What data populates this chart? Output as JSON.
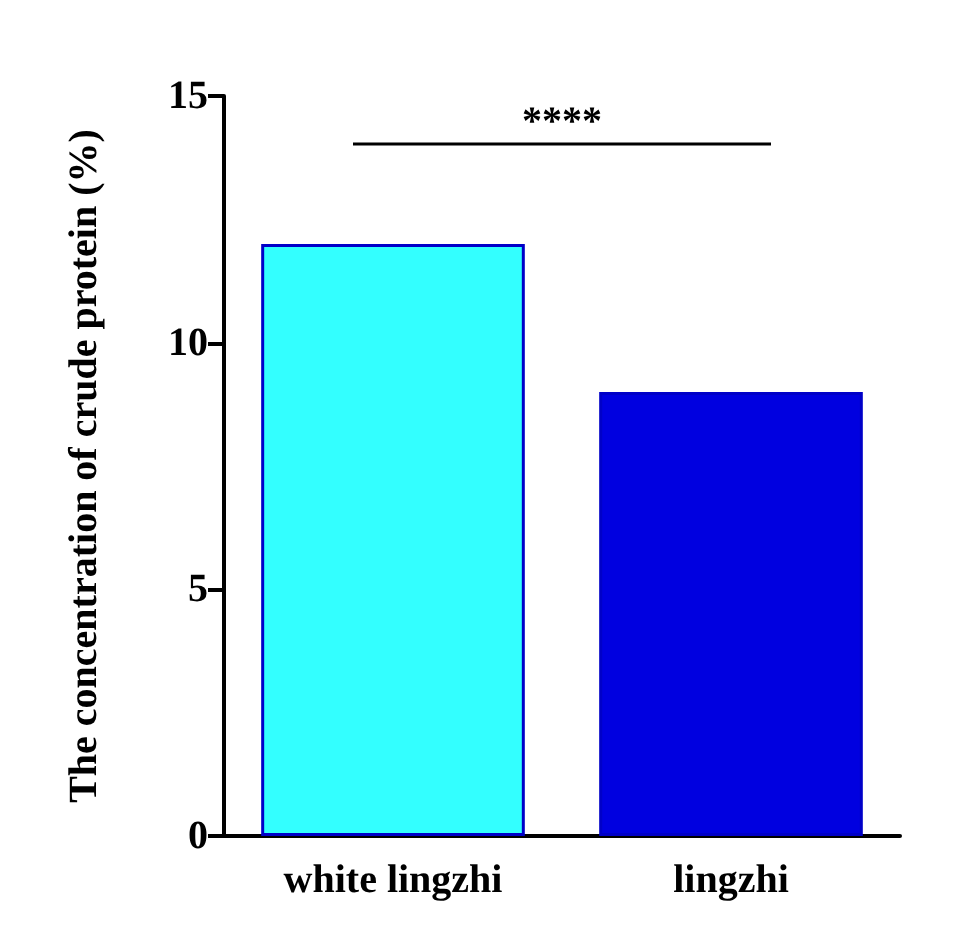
{
  "chart_data": {
    "type": "bar",
    "ylabel": "The concentration of crude protein (%)",
    "categories": [
      "white lingzhi",
      "lingzhi"
    ],
    "values": [
      12.0,
      9.0
    ],
    "colors": [
      "#33ffff",
      "#0000e0"
    ],
    "ylim": [
      0,
      15
    ],
    "yticks": [
      0,
      5,
      10,
      15
    ],
    "grid": false,
    "annotations": [
      "****"
    ]
  }
}
